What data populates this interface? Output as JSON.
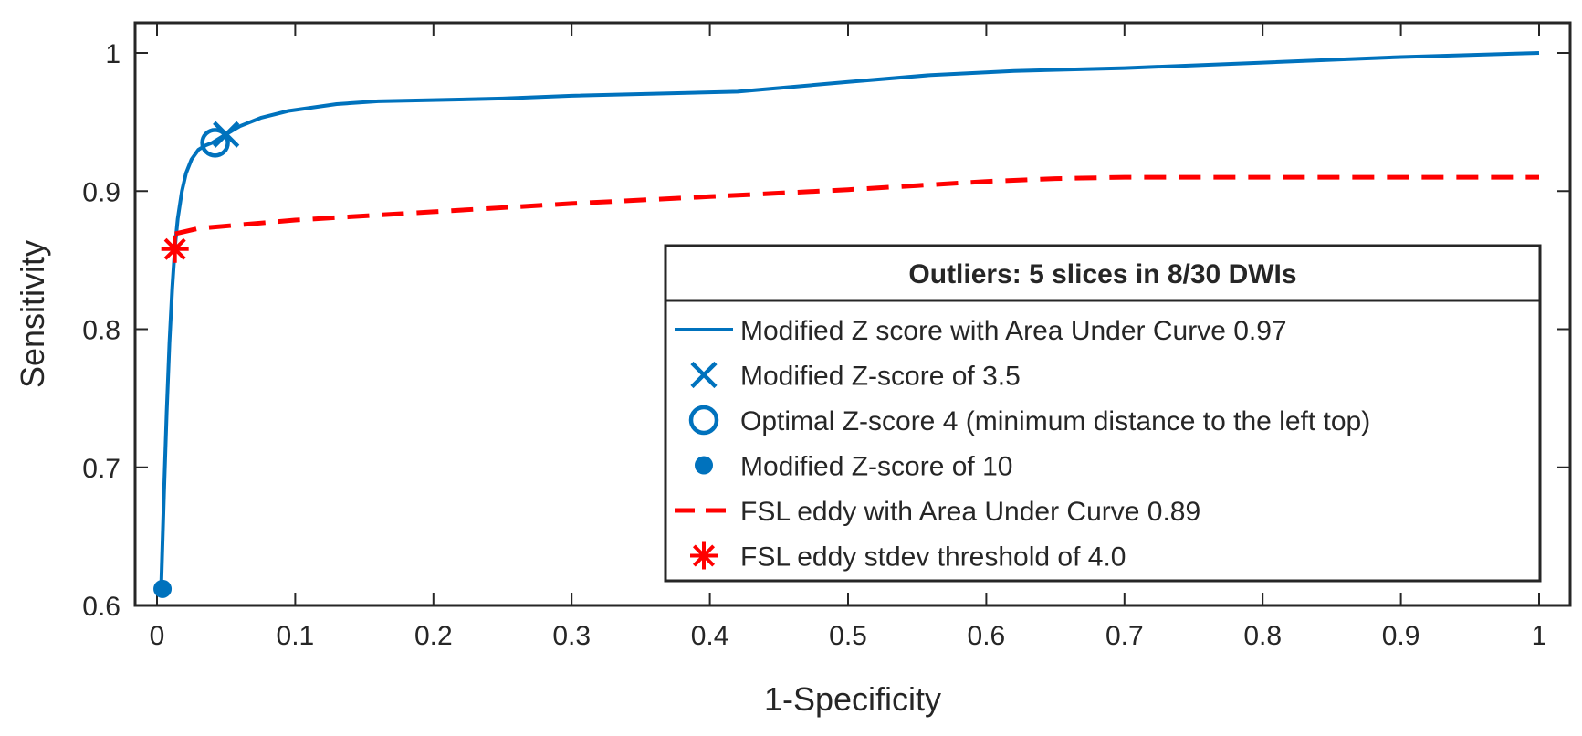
{
  "chart_data": {
    "type": "line",
    "title": "",
    "xlabel": "1-Specificity",
    "ylabel": "Sensitivity",
    "xlim": [
      0,
      1
    ],
    "ylim": [
      0.6,
      1.0
    ],
    "xticks": [
      0,
      0.1,
      0.2,
      0.3,
      0.4,
      0.5,
      0.6,
      0.7,
      0.8,
      0.9,
      1
    ],
    "xtick_labels": [
      "0",
      "0.1",
      "0.2",
      "0.3",
      "0.4",
      "0.5",
      "0.6",
      "0.7",
      "0.8",
      "0.9",
      "1"
    ],
    "yticks": [
      0.6,
      0.7,
      0.8,
      0.9,
      1.0
    ],
    "ytick_labels": [
      "0.6",
      "0.7",
      "0.8",
      "0.9",
      "1"
    ],
    "legend_title": "Outliers: 5 slices in 8/30 DWIs",
    "legend_position": "bottom-right",
    "colors": {
      "blue": "#0072BD",
      "red": "#FF0000",
      "axis": "#262626"
    },
    "series": [
      {
        "name": "Modified Z score with Area Under Curve 0.97",
        "style": "solid",
        "color": "#0072BD",
        "x": [
          0.003,
          0.005,
          0.007,
          0.009,
          0.011,
          0.013,
          0.015,
          0.018,
          0.021,
          0.025,
          0.03,
          0.035,
          0.04,
          0.048,
          0.06,
          0.075,
          0.095,
          0.13,
          0.16,
          0.25,
          0.3,
          0.42,
          0.5,
          0.56,
          0.62,
          0.7,
          0.8,
          0.9,
          1.0
        ],
        "y": [
          0.612,
          0.68,
          0.74,
          0.79,
          0.83,
          0.86,
          0.88,
          0.9,
          0.913,
          0.923,
          0.93,
          0.933,
          0.935,
          0.94,
          0.947,
          0.953,
          0.958,
          0.963,
          0.965,
          0.967,
          0.969,
          0.972,
          0.979,
          0.984,
          0.987,
          0.989,
          0.993,
          0.997,
          1.0
        ]
      },
      {
        "name": "FSL eddy with Area Under Curve 0.89",
        "style": "dashed",
        "color": "#FF0000",
        "x": [
          0.013,
          0.03,
          0.1,
          0.2,
          0.3,
          0.4,
          0.5,
          0.55,
          0.6,
          0.65,
          0.7,
          0.8,
          0.9,
          1.0
        ],
        "y": [
          0.869,
          0.873,
          0.879,
          0.885,
          0.891,
          0.896,
          0.901,
          0.904,
          0.907,
          0.909,
          0.91,
          0.91,
          0.91,
          0.91
        ]
      }
    ],
    "markers": [
      {
        "name": "Modified Z-score of 3.5",
        "symbol": "x",
        "color": "#0072BD",
        "x": 0.05,
        "y": 0.941
      },
      {
        "name": "Optimal Z-score 4 (minimum distance to the left top)",
        "symbol": "o",
        "color": "#0072BD",
        "x": 0.042,
        "y": 0.935
      },
      {
        "name": "Modified Z-score of 10",
        "symbol": "dot",
        "color": "#0072BD",
        "x": 0.004,
        "y": 0.612
      },
      {
        "name": "FSL eddy stdev threshold of 4.0",
        "symbol": "asterisk",
        "color": "#FF0000",
        "x": 0.013,
        "y": 0.858
      }
    ],
    "legend": [
      {
        "label": "Modified Z score with Area Under Curve 0.97",
        "symbol": "line",
        "color": "#0072BD"
      },
      {
        "label": "Modified Z-score of 3.5",
        "symbol": "x",
        "color": "#0072BD"
      },
      {
        "label": "Optimal Z-score 4 (minimum distance to the left top)",
        "symbol": "o",
        "color": "#0072BD"
      },
      {
        "label": "Modified Z-score of 10",
        "symbol": "dot",
        "color": "#0072BD"
      },
      {
        "label": "FSL eddy with Area Under Curve 0.89",
        "symbol": "dashed",
        "color": "#FF0000"
      },
      {
        "label": "FSL eddy stdev threshold of 4.0",
        "symbol": "asterisk",
        "color": "#FF0000"
      }
    ]
  }
}
